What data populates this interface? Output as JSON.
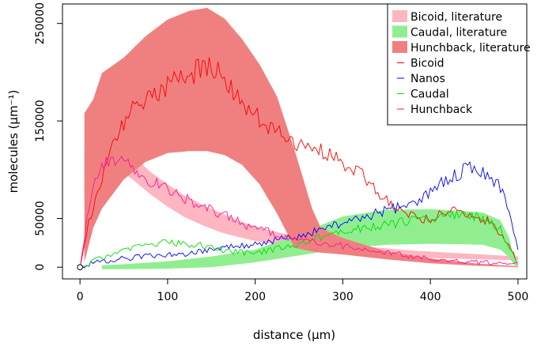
{
  "chart_data": {
    "type": "line",
    "title": "",
    "xlabel": "distance (µm)",
    "ylabel": "molecules (µm⁻¹)",
    "xlim": [
      -20,
      510
    ],
    "ylim": [
      -12000,
      270000
    ],
    "x_ticks": [
      0,
      100,
      200,
      300,
      400,
      500
    ],
    "x_tick_labels": [
      "0",
      "100",
      "200",
      "300",
      "400",
      "500"
    ],
    "y_ticks": [
      0,
      50000,
      150000,
      250000
    ],
    "y_tick_labels": [
      "0",
      "50000",
      "150000",
      "250000"
    ],
    "grid": false,
    "legend_position": "top-right",
    "origin_marker": [
      0,
      0
    ],
    "bands": [
      {
        "name": "Bicoid, literature",
        "color": "#ffb6c1",
        "x": [
          5,
          15,
          25,
          40,
          60,
          80,
          100,
          120,
          140,
          160,
          180,
          200,
          220,
          240,
          260,
          280,
          300,
          320,
          340,
          360,
          380,
          400,
          420,
          440,
          460,
          480,
          500
        ],
        "upper": [
          120000,
          133000,
          137000,
          130000,
          115000,
          98000,
          85000,
          73000,
          64000,
          56000,
          48000,
          42000,
          37000,
          33000,
          30000,
          27000,
          24500,
          22000,
          20000,
          18500,
          17000,
          16000,
          15000,
          14000,
          13000,
          12000,
          11000
        ],
        "lower": [
          70000,
          100000,
          108000,
          103000,
          90000,
          75000,
          62000,
          51000,
          43000,
          36000,
          31000,
          27000,
          24000,
          21000,
          19000,
          17000,
          15500,
          14000,
          12500,
          11500,
          10500,
          9500,
          9000,
          8500,
          8000,
          7500,
          7000
        ]
      },
      {
        "name": "Caudal, literature",
        "color": "#90ee90",
        "x": [
          25,
          50,
          100,
          150,
          200,
          250,
          300,
          350,
          400,
          440,
          460,
          480,
          490,
          495,
          500
        ],
        "upper": [
          2000,
          3000,
          6000,
          11000,
          18000,
          34000,
          52000,
          59000,
          59500,
          57500,
          56000,
          48000,
          30000,
          10000,
          2000
        ],
        "lower": [
          -2000,
          -2000,
          -1500,
          0,
          5000,
          12000,
          19000,
          23000,
          24000,
          23500,
          23000,
          18000,
          10000,
          3000,
          0
        ]
      },
      {
        "name": "Hunchback, literature",
        "color": "#f08080",
        "x": [
          5,
          15,
          25,
          50,
          75,
          100,
          125,
          145,
          165,
          185,
          205,
          225,
          245,
          265,
          275,
          300,
          350,
          400,
          450,
          500
        ],
        "upper": [
          158000,
          172000,
          199000,
          215000,
          237000,
          254000,
          263000,
          266000,
          255000,
          234000,
          208000,
          175000,
          120000,
          60000,
          40000,
          30000,
          16000,
          9000,
          4000,
          1000
        ],
        "lower": [
          5000,
          40000,
          60000,
          90000,
          108000,
          117000,
          119000,
          119000,
          115000,
          105000,
          85000,
          55000,
          20000,
          16000,
          15000,
          13000,
          8000,
          4000,
          1500,
          0
        ]
      }
    ],
    "series": [
      {
        "name": "Bicoid",
        "color": "#ff0000",
        "x": [
          0,
          10,
          20,
          30,
          40,
          50,
          60,
          70,
          80,
          90,
          100,
          110,
          120,
          130,
          140,
          150,
          160,
          170,
          180,
          190,
          200,
          210,
          220,
          230,
          240,
          250,
          260,
          270,
          280,
          290,
          300,
          310,
          320,
          330,
          340,
          350,
          360,
          370,
          380,
          390,
          400,
          410,
          420,
          430,
          440,
          450,
          460,
          470,
          480,
          490,
          500
        ],
        "y": [
          0,
          45000,
          75000,
          105000,
          135000,
          145000,
          160000,
          165000,
          180000,
          178000,
          186000,
          193000,
          197000,
          200000,
          205000,
          203000,
          197000,
          187000,
          175000,
          165000,
          156000,
          150000,
          143000,
          138000,
          132000,
          127000,
          124000,
          120000,
          117000,
          113000,
          106000,
          101000,
          96000,
          86000,
          78000,
          70000,
          62000,
          55000,
          52000,
          50000,
          48000,
          53000,
          58000,
          60000,
          55000,
          52000,
          50000,
          44000,
          35000,
          20000,
          5000
        ]
      },
      {
        "name": "Nanos",
        "color": "#0000ff",
        "x": [
          0,
          10,
          20,
          40,
          60,
          80,
          100,
          120,
          140,
          160,
          180,
          200,
          220,
          240,
          260,
          280,
          300,
          320,
          340,
          360,
          380,
          400,
          410,
          420,
          430,
          440,
          450,
          460,
          470,
          480,
          490,
          500
        ],
        "y": [
          0,
          3000,
          5000,
          8000,
          10000,
          11000,
          13000,
          14000,
          17000,
          19000,
          21000,
          24000,
          27000,
          30000,
          34000,
          40000,
          45000,
          50000,
          56000,
          60000,
          65000,
          78000,
          85000,
          90000,
          95000,
          100000,
          103000,
          98000,
          92000,
          82000,
          55000,
          18000
        ]
      },
      {
        "name": "Caudal",
        "color": "#00dd00",
        "x": [
          0,
          10,
          20,
          40,
          60,
          80,
          100,
          120,
          140,
          160,
          180,
          200,
          220,
          240,
          260,
          280,
          300,
          320,
          340,
          360,
          380,
          400,
          420,
          440,
          460,
          480,
          490,
          500
        ],
        "y": [
          0,
          4000,
          8000,
          14000,
          19000,
          22000,
          26000,
          24000,
          22000,
          18000,
          15000,
          15000,
          18000,
          22000,
          27000,
          32000,
          37000,
          40000,
          42000,
          45000,
          48000,
          50000,
          53000,
          55000,
          50000,
          38000,
          22000,
          5000
        ]
      },
      {
        "name": "Hunchback",
        "color": "#ff1493",
        "x": [
          0,
          10,
          20,
          30,
          40,
          50,
          60,
          70,
          80,
          90,
          100,
          110,
          120,
          130,
          140,
          150,
          160,
          170,
          180,
          190,
          200,
          210,
          220,
          230,
          240,
          260,
          280,
          300,
          320,
          340,
          360,
          380,
          400,
          420,
          440,
          460,
          480,
          500
        ],
        "y": [
          0,
          60000,
          95000,
          108000,
          112000,
          108000,
          100000,
          95000,
          88000,
          84000,
          80000,
          74000,
          70000,
          66000,
          62000,
          58000,
          55000,
          51000,
          47000,
          43000,
          40000,
          37000,
          35000,
          32000,
          30000,
          27000,
          24000,
          22000,
          20000,
          17000,
          14000,
          11000,
          9000,
          7000,
          6000,
          5000,
          4000,
          3000
        ]
      }
    ]
  }
}
